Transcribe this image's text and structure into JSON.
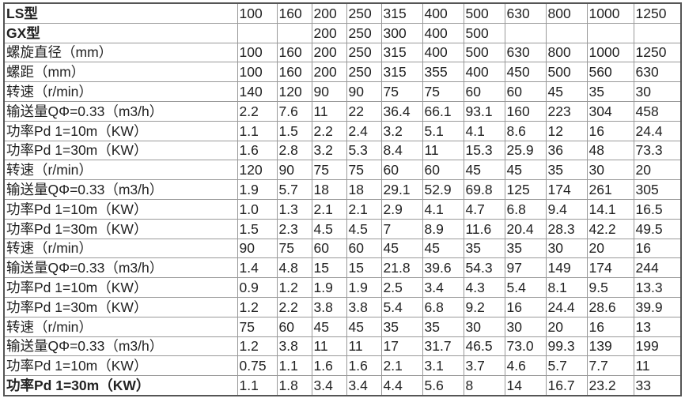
{
  "table": {
    "rows": [
      {
        "label": "LS型",
        "bold": true,
        "values": [
          "100",
          "160",
          "200",
          "250",
          "315",
          "400",
          "500",
          "630",
          "800",
          "1000",
          "1250"
        ]
      },
      {
        "label": "GX型",
        "bold": true,
        "values": [
          "",
          "",
          "200",
          "250",
          "300",
          "400",
          "500",
          "",
          "",
          "",
          ""
        ]
      },
      {
        "label": "螺旋直径（mm）",
        "values": [
          "100",
          "160",
          "200",
          "250",
          "315",
          "400",
          "500",
          "630",
          "800",
          "1000",
          "1250"
        ]
      },
      {
        "label": "螺距（mm）",
        "values": [
          "100",
          "160",
          "200",
          "250",
          "315",
          "355",
          "400",
          "450",
          "500",
          "560",
          "630"
        ]
      },
      {
        "label": "转速（r/min）",
        "values": [
          "140",
          "120",
          "90",
          "90",
          "75",
          "75",
          "60",
          "60",
          "45",
          "35",
          "30"
        ]
      },
      {
        "label": "输送量QΦ=0.33（m3/h）",
        "values": [
          "2.2",
          "7.6",
          "11",
          "22",
          "36.4",
          "66.1",
          "93.1",
          "160",
          "223",
          "304",
          "458"
        ]
      },
      {
        "label": "功率Pd 1=10m（KW）",
        "values": [
          "1.1",
          "1.5",
          "2.2",
          "2.4",
          "3.2",
          "5.1",
          "4.1",
          "8.6",
          "12",
          "16",
          "24.4"
        ]
      },
      {
        "label": "功率Pd 1=30m（KW）",
        "values": [
          "1.6",
          "2.8",
          "3.2",
          "5.3",
          "8.4",
          "11",
          "15.3",
          "25.9",
          "36",
          "48",
          "73.3"
        ]
      },
      {
        "label": "转速（r/min）",
        "values": [
          "120",
          "90",
          "75",
          "75",
          "60",
          "60",
          "45",
          "45",
          "35",
          "30",
          "20"
        ]
      },
      {
        "label": "输送量QΦ=0.33（m3/h）",
        "values": [
          "1.9",
          "5.7",
          "18",
          "18",
          "29.1",
          "52.9",
          "69.8",
          "125",
          "174",
          "261",
          "305"
        ]
      },
      {
        "label": "功率Pd 1=10m（KW）",
        "values": [
          "1.0",
          "1.3",
          "2.1",
          "2.1",
          "2.9",
          "4.1",
          "4.7",
          "6.8",
          "9.4",
          "14.1",
          "16.5"
        ]
      },
      {
        "label": "功率Pd 1=30m（KW）",
        "values": [
          "1.5",
          "2.3",
          "4.5",
          "4.5",
          "7",
          "8.9",
          "11.6",
          "20.4",
          "28.3",
          "42.2",
          "49.5"
        ]
      },
      {
        "label": "转速（r/min）",
        "values": [
          "90",
          "75",
          "60",
          "60",
          "45",
          "45",
          "35",
          "35",
          "30",
          "20",
          "16"
        ]
      },
      {
        "label": "输送量QΦ=0.33（m3/h）",
        "values": [
          "1.4",
          "4.8",
          "15",
          "15",
          "21.8",
          "39.6",
          "54.3",
          "97",
          "149",
          "174",
          "244"
        ]
      },
      {
        "label": "功率Pd 1=10m（KW）",
        "values": [
          "0.9",
          "1.2",
          "1.9",
          "1.9",
          "2.5",
          "3.4",
          "4.3",
          "5.4",
          "8.1",
          "9.5",
          "13.3"
        ]
      },
      {
        "label": "功率Pd 1=30m（KW）",
        "values": [
          "1.2",
          "2.2",
          "3.8",
          "3.8",
          "5.4",
          "6.8",
          "9.2",
          "16",
          "24.4",
          "28.6",
          "39.9"
        ]
      },
      {
        "label": "转速（r/min）",
        "values": [
          "75",
          "60",
          "45",
          "45",
          "35",
          "35",
          "30",
          "30",
          "20",
          "16",
          "13"
        ]
      },
      {
        "label": "输送量QΦ=0.33（m3/h）",
        "values": [
          "1.2",
          "3.8",
          "11",
          "11",
          "17",
          "31.7",
          "46.5",
          "73.0",
          "99.3",
          "139",
          "199"
        ]
      },
      {
        "label": "功率Pd 1=10m（KW）",
        "values": [
          "0.75",
          "1.1",
          "1.6",
          "1.6",
          "2.1",
          "3.1",
          "3.7",
          "4.6",
          "5.7",
          "7.7",
          "11"
        ]
      },
      {
        "label": "功率Pd 1=30m（KW）",
        "bold": true,
        "values": [
          "1.1",
          "1.8",
          "3.4",
          "3.4",
          "4.4",
          "5.6",
          "8",
          "14",
          "16.7",
          "23.2",
          "33"
        ]
      }
    ]
  }
}
